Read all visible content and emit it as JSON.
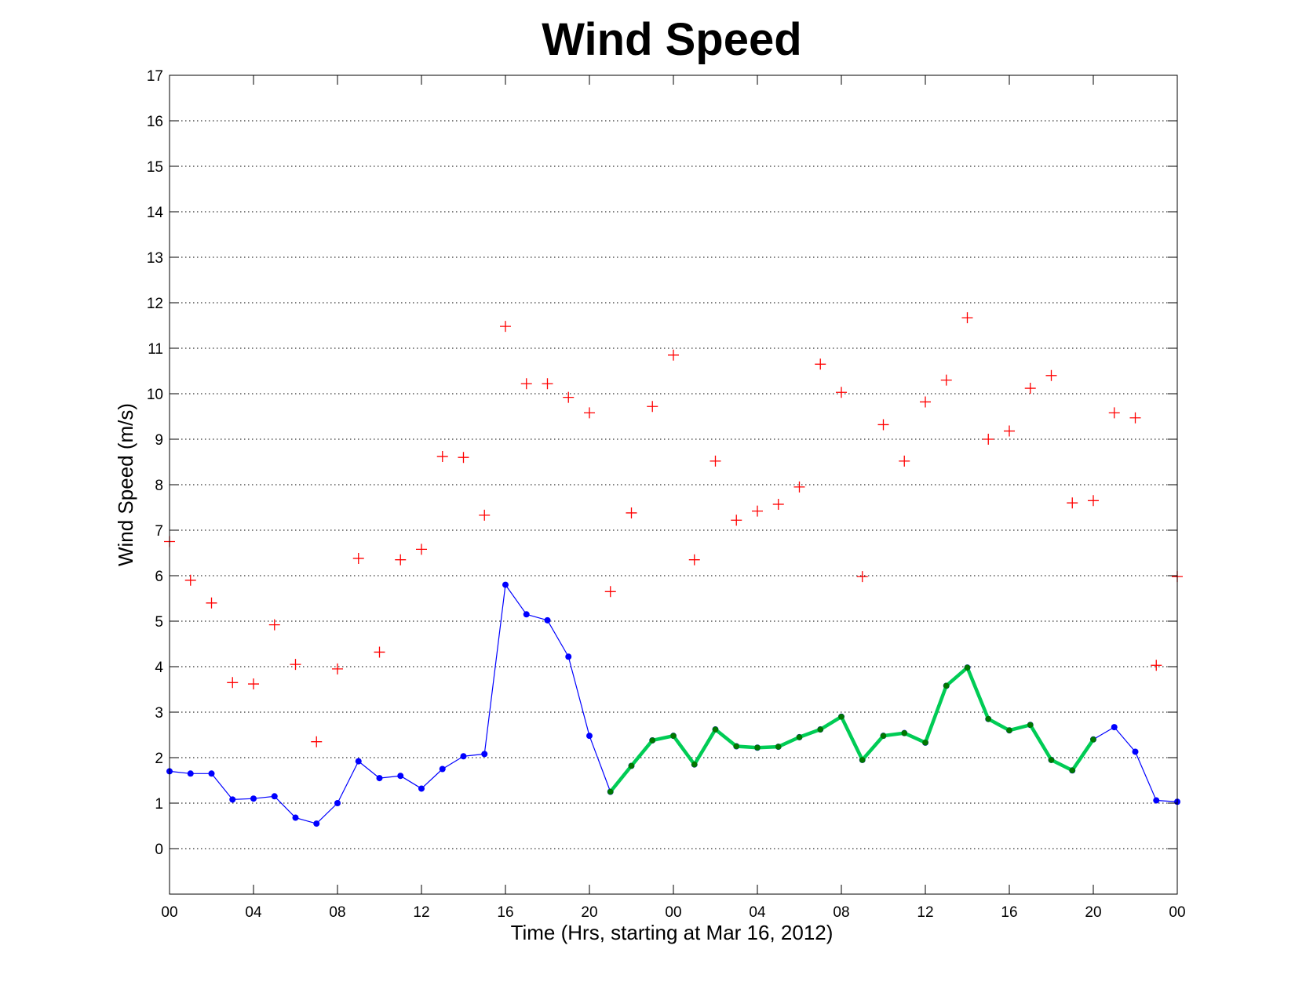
{
  "chart_data": {
    "type": "line",
    "title": "Wind Speed",
    "xlabel": "Time (Hrs, starting at Mar 16, 2012)",
    "ylabel": "Wind Speed (m/s)",
    "xlim": [
      0,
      48
    ],
    "ylim": [
      -1,
      17
    ],
    "grid": "y-dotted",
    "x_tick_values": [
      0,
      4,
      8,
      12,
      16,
      20,
      24,
      28,
      32,
      36,
      40,
      44,
      48
    ],
    "x_tick_labels": [
      "00",
      "04",
      "08",
      "12",
      "16",
      "20",
      "00",
      "04",
      "08",
      "12",
      "16",
      "20",
      "00"
    ],
    "y_ticks": [
      0,
      1,
      2,
      3,
      4,
      5,
      6,
      7,
      8,
      9,
      10,
      11,
      12,
      13,
      14,
      15,
      16,
      17
    ],
    "series": [
      {
        "style": "line-dot",
        "color": "#0000ff",
        "x": [
          0,
          1,
          2,
          3,
          4,
          5,
          6,
          7,
          8,
          9,
          10,
          11,
          12,
          13,
          14,
          15,
          16,
          17,
          18,
          19,
          20,
          21,
          22,
          23,
          24,
          25,
          26,
          27,
          28,
          29,
          30,
          31,
          32,
          33,
          34,
          35,
          36,
          37,
          38,
          39,
          40,
          41,
          42,
          43,
          44,
          45,
          46,
          47,
          48
        ],
        "y": [
          1.7,
          1.65,
          1.65,
          1.08,
          1.1,
          1.15,
          0.68,
          0.55,
          1.0,
          1.92,
          1.55,
          1.6,
          1.32,
          1.75,
          2.03,
          2.08,
          5.8,
          5.15,
          5.02,
          4.22,
          2.48,
          1.25,
          1.82,
          2.38,
          2.48,
          1.85,
          2.62,
          2.25,
          2.22,
          2.24,
          2.45,
          2.62,
          2.9,
          1.95,
          2.48,
          2.54,
          2.33,
          3.58,
          3.98,
          2.85,
          2.6,
          2.72,
          1.95,
          1.72,
          2.4,
          2.67,
          2.13,
          1.06,
          1.03
        ]
      },
      {
        "style": "thick-line",
        "color": "#00cc55",
        "marker_color": "#007700",
        "x": [
          21,
          22,
          23,
          24,
          25,
          26,
          27,
          28,
          29,
          30,
          31,
          32,
          33,
          34,
          35,
          36,
          37,
          38,
          39,
          40,
          41,
          42,
          43,
          44
        ],
        "y": [
          1.25,
          1.82,
          2.38,
          2.48,
          1.85,
          2.62,
          2.25,
          2.22,
          2.24,
          2.45,
          2.62,
          2.9,
          1.95,
          2.48,
          2.54,
          2.33,
          3.58,
          3.98,
          2.85,
          2.6,
          2.72,
          1.95,
          1.72,
          2.4
        ]
      },
      {
        "style": "plus-marker",
        "color": "#ff0000",
        "x": [
          0,
          1,
          2,
          3,
          4,
          5,
          6,
          7,
          8,
          9,
          10,
          11,
          12,
          13,
          14,
          15,
          16,
          17,
          18,
          19,
          20,
          21,
          22,
          23,
          24,
          25,
          26,
          27,
          28,
          29,
          30,
          31,
          32,
          33,
          34,
          35,
          36,
          37,
          38,
          39,
          40,
          41,
          42,
          43,
          44,
          45,
          46,
          47,
          48
        ],
        "y": [
          6.75,
          5.9,
          5.4,
          3.65,
          3.62,
          4.92,
          4.05,
          2.35,
          3.95,
          6.38,
          4.32,
          6.35,
          6.58,
          8.62,
          8.6,
          7.33,
          11.48,
          10.22,
          10.22,
          9.92,
          9.58,
          5.65,
          7.38,
          9.72,
          10.85,
          6.35,
          8.52,
          7.22,
          7.42,
          7.57,
          7.95,
          10.65,
          10.03,
          5.98,
          9.32,
          8.52,
          9.82,
          10.3,
          11.67,
          9.0,
          9.18,
          10.12,
          10.4,
          7.6,
          7.65,
          9.58,
          9.47,
          4.03,
          5.98
        ]
      }
    ]
  }
}
